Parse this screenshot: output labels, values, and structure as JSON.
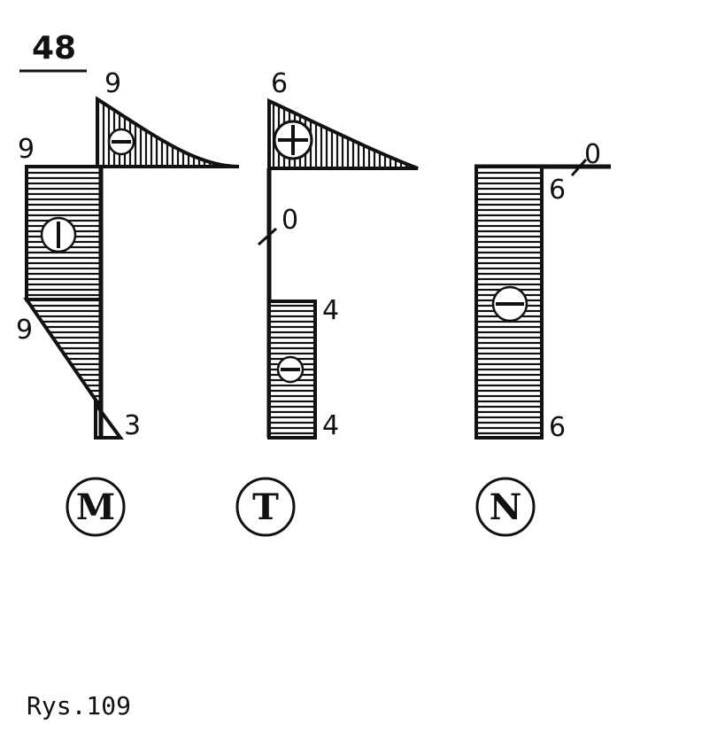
{
  "figure": {
    "number": "48",
    "caption": "Rys.109"
  },
  "diagram_M": {
    "circle_label": "M",
    "top_triangle": {
      "label_top": "9",
      "sign": "-"
    },
    "upper_rect": {
      "label_left": "9",
      "sign": "I"
    },
    "lower_triangle": {
      "label_left": "9",
      "label_bottom": "3"
    }
  },
  "diagram_T": {
    "circle_label": "T",
    "top_triangle": {
      "label_top": "6",
      "sign": "+"
    },
    "zero_label": "0",
    "rect": {
      "label_top": "4",
      "label_bottom": "4",
      "sign": "-"
    }
  },
  "diagram_N": {
    "circle_label": "N",
    "zero_label": "0",
    "rect": {
      "label_top": "6",
      "label_bottom": "6",
      "sign": "-"
    }
  },
  "colors": {
    "ink": "#111111",
    "paper": "#ffffff"
  }
}
